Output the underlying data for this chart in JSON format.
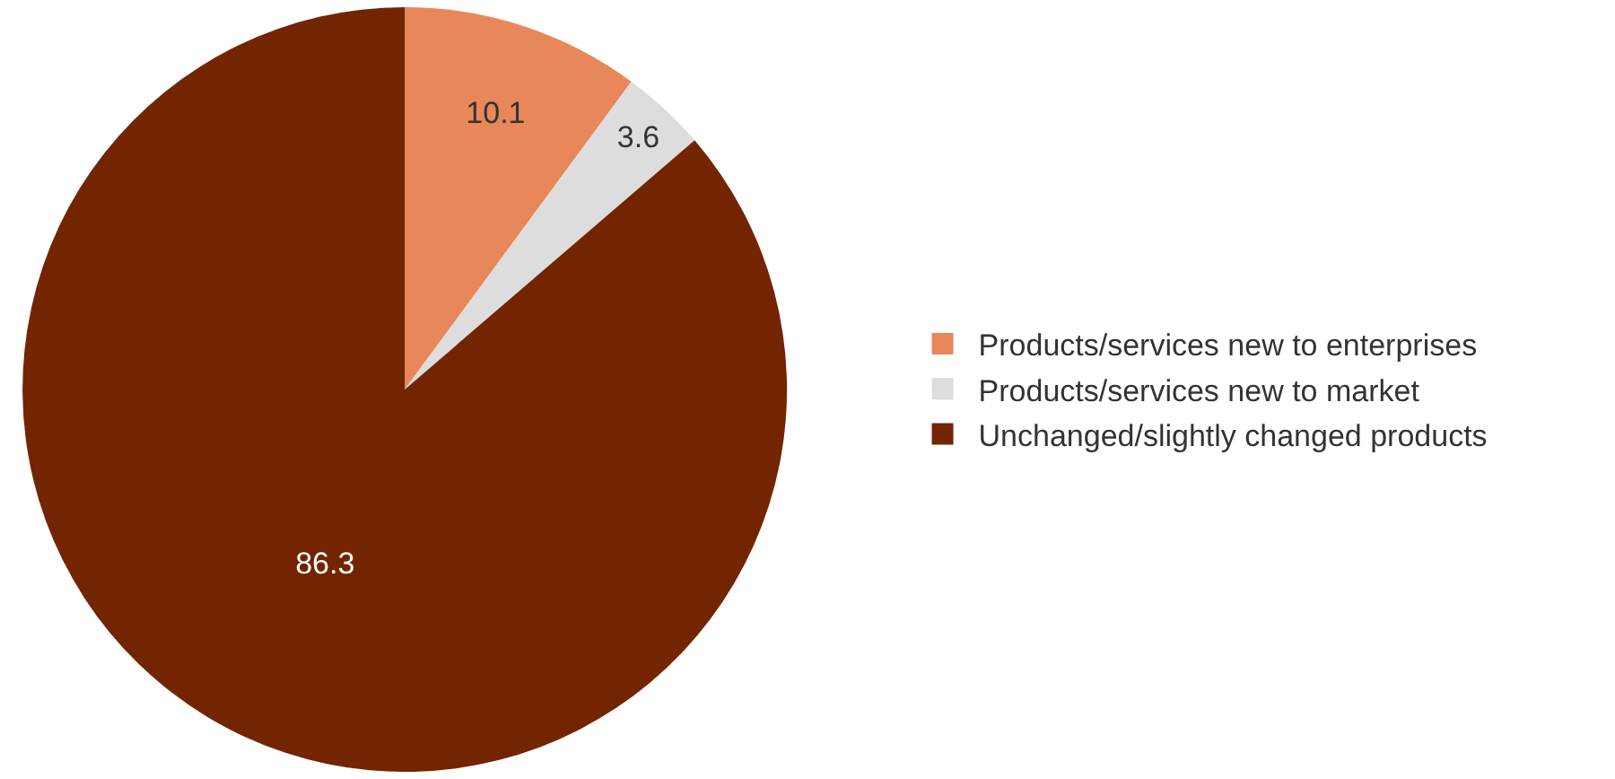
{
  "chart_data": {
    "type": "pie",
    "categories": [
      "Products/services new to enterprises",
      "Products/services new to market",
      "Unchanged/slightly changed products"
    ],
    "values": [
      10.1,
      3.6,
      86.3
    ],
    "colors": [
      "#e8875a",
      "#dddddd",
      "#722500"
    ],
    "data_labels": true,
    "legend": "right"
  }
}
